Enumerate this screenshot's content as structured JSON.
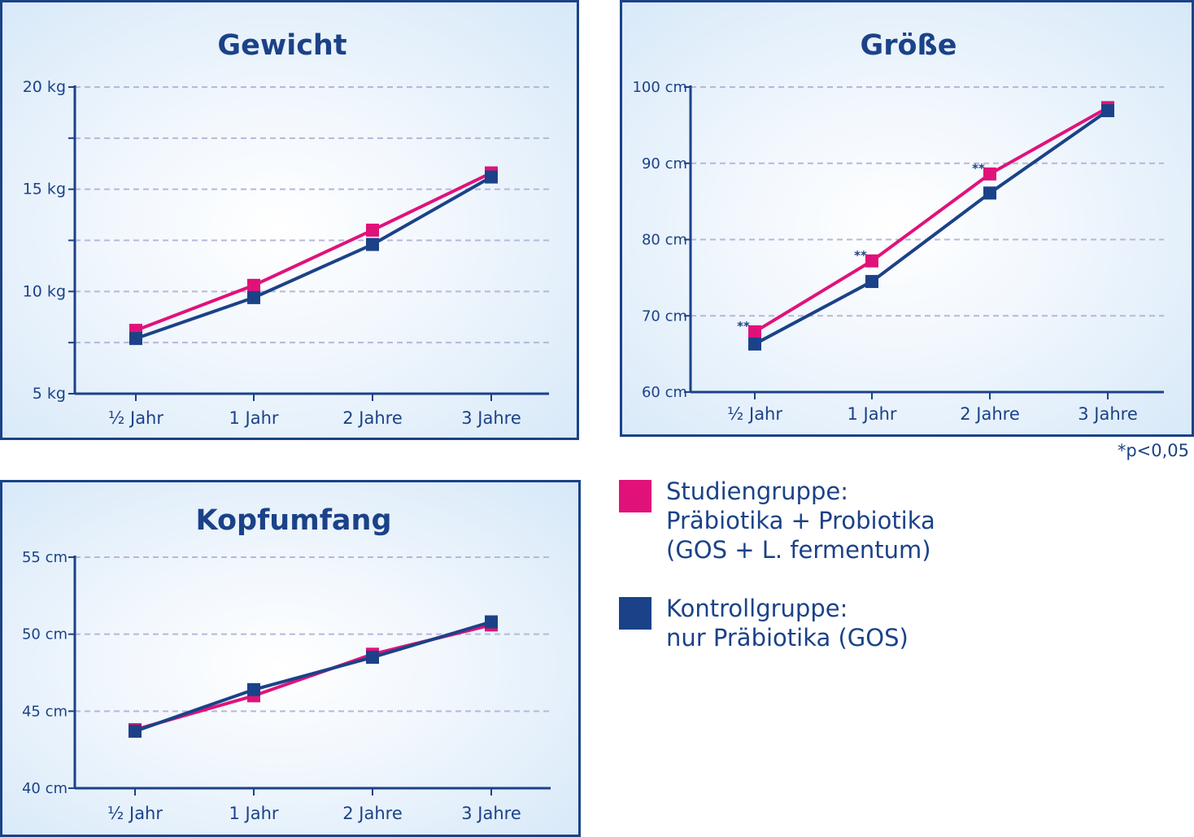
{
  "colors": {
    "study": "#e0127a",
    "control": "#1b4288",
    "title": "#1b4288",
    "axis": "#1b4288",
    "grid": "#b9b6d8"
  },
  "footnote": "*p<0,05",
  "legend": [
    {
      "key": "study",
      "text": "Studiengruppe:\nPräbiotika + Probiotika\n(GOS + L. fermentum)"
    },
    {
      "key": "control",
      "text": "Kontrollgruppe:\nnur Präbiotika (GOS)"
    }
  ],
  "chart_data": [
    {
      "id": "gewicht",
      "type": "line",
      "title": "Gewicht",
      "categories": [
        "½ Jahr",
        "1 Jahr",
        "2 Jahre",
        "3 Jahre"
      ],
      "ylim": [
        5,
        20
      ],
      "yticks": [
        {
          "value": 20,
          "label": "20 kg"
        },
        {
          "value": 17.5,
          "label": ""
        },
        {
          "value": 15,
          "label": "15 kg"
        },
        {
          "value": 12.5,
          "label": ""
        },
        {
          "value": 10,
          "label": "10 kg"
        },
        {
          "value": 7.5,
          "label": ""
        },
        {
          "value": 5,
          "label": "5 kg"
        }
      ],
      "grid": true,
      "series": [
        {
          "key": "study",
          "values": [
            8.1,
            10.3,
            13.0,
            15.8
          ]
        },
        {
          "key": "control",
          "values": [
            7.7,
            9.7,
            12.3,
            15.6
          ]
        }
      ],
      "annotations": []
    },
    {
      "id": "groesse",
      "type": "line",
      "title": "Größe",
      "categories": [
        "½ Jahr",
        "1 Jahr",
        "2 Jahre",
        "3 Jahre"
      ],
      "ylim": [
        60,
        100
      ],
      "yticks": [
        {
          "value": 100,
          "label": "100 cm"
        },
        {
          "value": 90,
          "label": "90 cm"
        },
        {
          "value": 80,
          "label": "80 cm"
        },
        {
          "value": 70,
          "label": "70 cm"
        },
        {
          "value": 60,
          "label": "60 cm"
        }
      ],
      "grid": true,
      "series": [
        {
          "key": "study",
          "values": [
            67.9,
            77.2,
            88.6,
            97.3
          ]
        },
        {
          "key": "control",
          "values": [
            66.3,
            74.5,
            86.1,
            96.9
          ]
        }
      ],
      "annotations": [
        {
          "index": 0,
          "text": "**"
        },
        {
          "index": 1,
          "text": "**"
        },
        {
          "index": 2,
          "text": "**"
        }
      ]
    },
    {
      "id": "kopfumfang",
      "type": "line",
      "title": "Kopfumfang",
      "categories": [
        "½ Jahr",
        "1 Jahr",
        "2 Jahre",
        "3 Jahre"
      ],
      "ylim": [
        40,
        55
      ],
      "yticks": [
        {
          "value": 55,
          "label": "55 cm"
        },
        {
          "value": 50,
          "label": "50 cm"
        },
        {
          "value": 45,
          "label": "45 cm"
        },
        {
          "value": 40,
          "label": "40 cm"
        }
      ],
      "grid": true,
      "series": [
        {
          "key": "study",
          "values": [
            43.8,
            46.0,
            48.7,
            50.6
          ]
        },
        {
          "key": "control",
          "values": [
            43.7,
            46.4,
            48.5,
            50.8
          ]
        }
      ],
      "annotations": []
    }
  ]
}
